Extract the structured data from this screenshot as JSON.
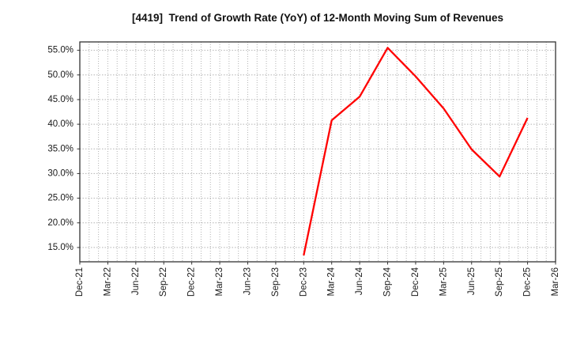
{
  "chart_data": {
    "type": "line",
    "title": "[4419]  Trend of Growth Rate (YoY) of 12-Month Moving Sum of Revenues",
    "categories": [
      "Dec-21",
      "Mar-22",
      "Jun-22",
      "Sep-22",
      "Dec-22",
      "Mar-23",
      "Jun-23",
      "Sep-23",
      "Dec-23",
      "Mar-24",
      "Jun-24",
      "Sep-24",
      "Dec-24",
      "Mar-25",
      "Jun-25",
      "Sep-25",
      "Dec-25",
      "Mar-26"
    ],
    "values": [
      null,
      null,
      null,
      null,
      null,
      null,
      null,
      null,
      13.4,
      40.8,
      45.6,
      55.5,
      49.7,
      43.2,
      34.9,
      29.4,
      41.3,
      null
    ],
    "y_ticks": [
      15,
      20,
      25,
      30,
      35,
      40,
      45,
      50,
      55
    ],
    "y_tick_labels": [
      "15.0%",
      "20.0%",
      "25.0%",
      "30.0%",
      "35.0%",
      "40.0%",
      "45.0%",
      "50.0%",
      "55.0%"
    ],
    "ylim": [
      12.1,
      56.7
    ],
    "xlabel": "",
    "ylabel": "",
    "legend": "none",
    "grid": "dotted, monthly minor vertical + 5% horizontal",
    "months_per_category": 3,
    "colors": {
      "line": "#ff0000",
      "grid": "#b3b3b3",
      "axis": "#333333",
      "tick_text": "#1a1a1a",
      "background": "#ffffff"
    }
  }
}
